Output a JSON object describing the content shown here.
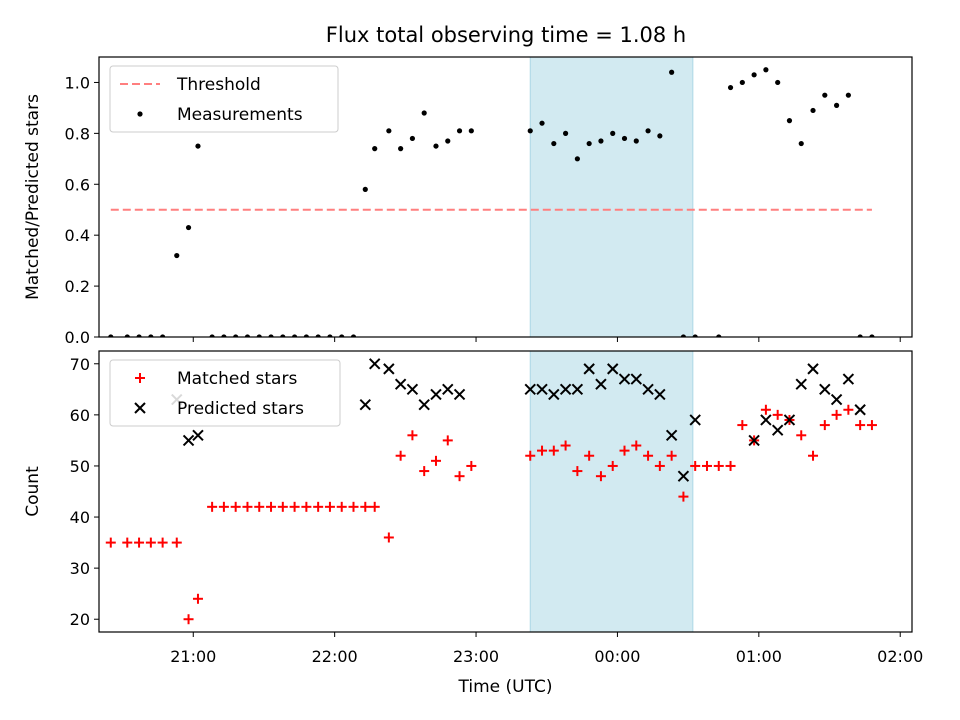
{
  "title": "Flux total observing time = 1.08 h",
  "chart_data": [
    {
      "type": "scatter",
      "ylabel": "Matched/Predicted stars",
      "xlabel": "",
      "ylim": [
        0,
        1.1
      ],
      "xlim": [
        "20:20",
        "02:05"
      ],
      "yticks": [
        0.0,
        0.2,
        0.4,
        0.6,
        0.8,
        1.0
      ],
      "ytick_labels": [
        "0.0",
        "0.2",
        "0.4",
        "0.6",
        "0.8",
        "1.0"
      ],
      "legend": {
        "placement": "top-left",
        "entries": [
          "Threshold",
          "Measurements"
        ]
      },
      "shaded_span": [
        "23:23",
        "00:32"
      ],
      "threshold": {
        "name": "Threshold",
        "y": 0.5,
        "x_from": "20:25",
        "x_to": "01:48",
        "color": "#ff7f7f"
      },
      "series": [
        {
          "name": "Measurements",
          "color": "#000000",
          "x": [
            "20:25",
            "20:32",
            "20:37",
            "20:42",
            "20:47",
            "20:53",
            "20:58",
            "21:02",
            "21:08",
            "21:13",
            "21:18",
            "21:23",
            "21:28",
            "21:33",
            "21:38",
            "21:43",
            "21:48",
            "21:53",
            "21:58",
            "22:03",
            "22:08",
            "22:13",
            "22:17",
            "22:23",
            "22:28",
            "22:33",
            "22:38",
            "22:43",
            "22:48",
            "22:53",
            "22:58",
            "23:23",
            "23:28",
            "23:33",
            "23:38",
            "23:43",
            "23:48",
            "23:53",
            "23:58",
            "00:03",
            "00:08",
            "00:13",
            "00:18",
            "00:23",
            "00:28",
            "00:33",
            "00:43",
            "00:48",
            "00:53",
            "00:58",
            "01:03",
            "01:08",
            "01:13",
            "01:18",
            "01:23",
            "01:28",
            "01:33",
            "01:38",
            "01:43",
            "01:48"
          ],
          "y": [
            0,
            0,
            0,
            0,
            0,
            0.32,
            0.43,
            0.75,
            0,
            0,
            0,
            0,
            0,
            0,
            0,
            0,
            0,
            0,
            0,
            0,
            0,
            0.58,
            0.74,
            0.81,
            0.74,
            0.78,
            0.88,
            0.75,
            0.77,
            0.81,
            0.81,
            0.81,
            0.84,
            0.76,
            0.8,
            0.7,
            0.76,
            0.77,
            0.8,
            0.78,
            0.77,
            0.81,
            0.79,
            1.04,
            0,
            0,
            0,
            0.98,
            1.0,
            1.03,
            1.05,
            1.0,
            0.85,
            0.76,
            0.89,
            0.95,
            0.91,
            0.95,
            0,
            0
          ]
        }
      ]
    },
    {
      "type": "scatter",
      "ylabel": "Count",
      "xlabel": "Time (UTC)",
      "ylim": [
        17.5,
        72.5
      ],
      "xlim": [
        "20:20",
        "02:05"
      ],
      "yticks": [
        20,
        30,
        40,
        50,
        60,
        70
      ],
      "ytick_labels": [
        "20",
        "30",
        "40",
        "50",
        "60",
        "70"
      ],
      "xticks": [
        "21:00",
        "22:00",
        "23:00",
        "00:00",
        "01:00",
        "02:00"
      ],
      "legend": {
        "placement": "top-left",
        "entries": [
          "Matched stars",
          "Predicted stars"
        ]
      },
      "shaded_span": [
        "23:23",
        "00:32"
      ],
      "series": [
        {
          "name": "Matched stars",
          "marker": "+",
          "color": "#ff0000",
          "x": [
            "20:25",
            "20:32",
            "20:37",
            "20:42",
            "20:47",
            "20:53",
            "20:58",
            "21:02",
            "21:08",
            "21:13",
            "21:18",
            "21:23",
            "21:28",
            "21:33",
            "21:38",
            "21:43",
            "21:48",
            "21:53",
            "21:58",
            "22:03",
            "22:08",
            "22:13",
            "22:17",
            "22:23",
            "22:28",
            "22:33",
            "22:38",
            "22:43",
            "22:48",
            "22:53",
            "22:58",
            "23:23",
            "23:28",
            "23:33",
            "23:38",
            "23:43",
            "23:48",
            "23:53",
            "23:58",
            "00:03",
            "00:08",
            "00:13",
            "00:18",
            "00:23",
            "00:28",
            "00:33",
            "00:38",
            "00:43",
            "00:48",
            "00:53",
            "00:58",
            "01:03",
            "01:08",
            "01:13",
            "01:18",
            "01:23",
            "01:28",
            "01:33",
            "01:38",
            "01:43",
            "01:48"
          ],
          "y": [
            35,
            35,
            35,
            35,
            35,
            35,
            20,
            24,
            42,
            42,
            42,
            42,
            42,
            42,
            42,
            42,
            42,
            42,
            42,
            42,
            42,
            42,
            42,
            36,
            52,
            56,
            49,
            51,
            55,
            48,
            50,
            52,
            53,
            53,
            54,
            49,
            52,
            48,
            50,
            53,
            54,
            52,
            50,
            52,
            44,
            50,
            50,
            50,
            50,
            58,
            55,
            61,
            60,
            59,
            56,
            52,
            58,
            60,
            61,
            58,
            58
          ]
        },
        {
          "name": "Predicted stars",
          "marker": "x",
          "color": "#000000",
          "x": [
            "20:53",
            "20:58",
            "21:02",
            "22:13",
            "22:17",
            "22:23",
            "22:28",
            "22:33",
            "22:38",
            "22:43",
            "22:48",
            "22:53",
            "23:23",
            "23:28",
            "23:33",
            "23:38",
            "23:43",
            "23:48",
            "23:53",
            "23:58",
            "00:03",
            "00:08",
            "00:13",
            "00:18",
            "00:23",
            "00:28",
            "00:33",
            "00:58",
            "01:03",
            "01:08",
            "01:13",
            "01:18",
            "01:23",
            "01:28",
            "01:33",
            "01:38",
            "01:43"
          ],
          "y": [
            63,
            55,
            56,
            62,
            70,
            69,
            66,
            65,
            62,
            64,
            65,
            64,
            65,
            65,
            64,
            65,
            65,
            69,
            66,
            69,
            67,
            67,
            65,
            64,
            56,
            48,
            59,
            55,
            59,
            57,
            59,
            66,
            69,
            65,
            63,
            67,
            61
          ]
        }
      ]
    }
  ]
}
